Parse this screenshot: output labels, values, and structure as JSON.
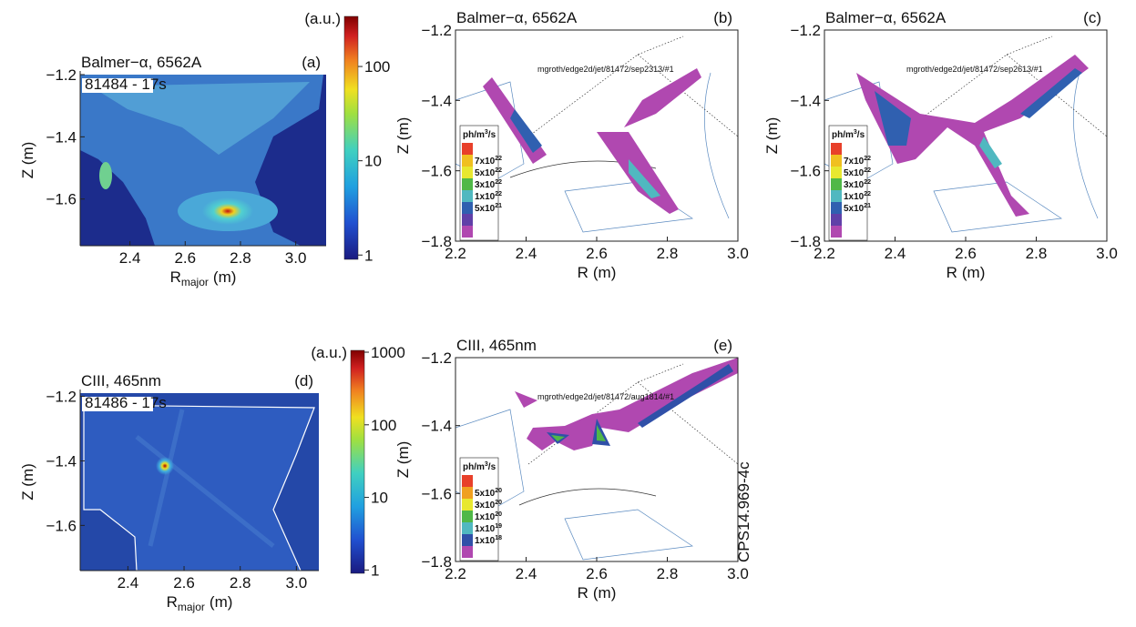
{
  "panels": [
    {
      "label": "(a)",
      "title": "Balmer−α, 6562A",
      "shot": "81484 - 17s",
      "xlabel": {
        "main": "R",
        "sub": "major",
        "unit": "(m)"
      },
      "ylabel": "Z (m)",
      "xlim": [
        2.22,
        3.11
      ],
      "ylim": [
        -1.75,
        -1.2
      ],
      "xticks": [
        2.4,
        2.6,
        2.8,
        {
          "value": 3,
          "label": "3.0"
        }
      ],
      "yticks": [
        {
          "value": -1.2,
          "label": "−1.2"
        },
        {
          "value": -1.4,
          "label": "−1.4"
        },
        {
          "value": -1.6,
          "label": "−1.6"
        }
      ],
      "colorbar": {
        "label": "(a.u.)",
        "scale": "log",
        "lim": [
          0.9,
          340
        ],
        "ticks": [
          1,
          10,
          100
        ]
      }
    },
    {
      "label": "(b)",
      "title": "Balmer−α, 6562A",
      "path": "mgroth/edge2d/jet/81472/sep2313/#1",
      "xlabel": {
        "main": "R",
        "unit": "(m)"
      },
      "ylabel": "Z (m)",
      "xlim": [
        2.2,
        3.0
      ],
      "ylim": [
        -1.8,
        -1.2
      ],
      "xticks": [
        2.2,
        2.4,
        2.6,
        2.8,
        {
          "value": 3,
          "label": "3.0"
        }
      ],
      "yticks": [
        {
          "value": -1.2,
          "label": "−1.2"
        },
        {
          "value": -1.4,
          "label": "−1.4"
        },
        {
          "value": -1.6,
          "label": "−1.6"
        },
        {
          "value": -1.8,
          "label": "−1.8"
        }
      ],
      "legend": {
        "unit": {
          "base": "ph/m",
          "sup": "3",
          "rest": "/s"
        },
        "colors": [
          "#e8402a",
          "#f0c020",
          "#e8e830",
          "#50b848",
          "#50b8c0",
          "#3060b0",
          "#6040a8",
          "#b048b0"
        ],
        "labels": [
          {
            "base": "7x10",
            "exp": "22"
          },
          {
            "base": "5x10",
            "exp": "22"
          },
          {
            "base": "3x10",
            "exp": "22"
          },
          {
            "base": "1x10",
            "exp": "22"
          },
          {
            "base": "5x10",
            "exp": "21"
          }
        ]
      }
    },
    {
      "label": "(c)",
      "title": "Balmer−α, 6562A",
      "path": "mgroth/edge2d/jet/81472/sep2613/#1",
      "xlabel": {
        "main": "R",
        "unit": "(m)"
      },
      "ylabel": "Z (m)",
      "xlim": [
        2.2,
        3.0
      ],
      "ylim": [
        -1.8,
        -1.2
      ],
      "xticks": [
        2.2,
        2.4,
        2.6,
        2.8,
        {
          "value": 3,
          "label": "3.0"
        }
      ],
      "yticks": [
        {
          "value": -1.2,
          "label": "−1.2"
        },
        {
          "value": -1.4,
          "label": "−1.4"
        },
        {
          "value": -1.6,
          "label": "−1.6"
        },
        {
          "value": -1.8,
          "label": "−1.8"
        }
      ],
      "legend": {
        "unit": {
          "base": "ph/m",
          "sup": "3",
          "rest": "/s"
        },
        "colors": [
          "#e8402a",
          "#f0c020",
          "#e8e830",
          "#50b848",
          "#50b8c0",
          "#3060b0",
          "#6040a8",
          "#b048b0"
        ],
        "labels": [
          {
            "base": "7x10",
            "exp": "22"
          },
          {
            "base": "5x10",
            "exp": "22"
          },
          {
            "base": "3x10",
            "exp": "22"
          },
          {
            "base": "1x10",
            "exp": "22"
          },
          {
            "base": "5x10",
            "exp": "21"
          }
        ]
      }
    },
    {
      "label": "(d)",
      "title": "CIII, 465nm",
      "shot": "81486 - 17s",
      "xlabel": {
        "main": "R",
        "sub": "major",
        "unit": "(m)"
      },
      "ylabel": "Z (m)",
      "xlim": [
        2.23,
        3.08
      ],
      "ylim": [
        -1.74,
        -1.19
      ],
      "xticks": [
        2.4,
        2.6,
        2.8,
        {
          "value": 3,
          "label": "3.0"
        }
      ],
      "yticks": [
        {
          "value": -1.2,
          "label": "−1.2"
        },
        {
          "value": -1.4,
          "label": "−1.4"
        },
        {
          "value": -1.6,
          "label": "−1.6"
        }
      ],
      "colorbar": {
        "label": "(a.u.)",
        "scale": "log",
        "lim": [
          0.9,
          1060
        ],
        "ticks": [
          1,
          10,
          100,
          1000
        ]
      }
    },
    {
      "label": "(e)",
      "title": "CIII, 465nm",
      "path": "mgroth/edge2d/jet/81472/aug1814/#1",
      "xlabel": {
        "main": "R",
        "unit": "(m)"
      },
      "ylabel": "Z (m)",
      "xlim": [
        2.2,
        3.0
      ],
      "ylim": [
        -1.8,
        -1.2
      ],
      "xticks": [
        2.2,
        2.4,
        2.6,
        2.8,
        {
          "value": 3,
          "label": "3.0"
        }
      ],
      "yticks": [
        {
          "value": -1.2,
          "label": "−1.2"
        },
        {
          "value": -1.4,
          "label": "−1.4"
        },
        {
          "value": -1.6,
          "label": "−1.6"
        },
        {
          "value": -1.8,
          "label": "−1.8"
        }
      ],
      "legend": {
        "unit": {
          "base": "ph/m",
          "sup": "3",
          "rest": "/s"
        },
        "colors": [
          "#e8402a",
          "#f0a020",
          "#e8e830",
          "#50b848",
          "#50b8c0",
          "#3050a8",
          "#b048b0"
        ],
        "labels": [
          {
            "base": "5x10",
            "exp": "20"
          },
          {
            "base": "3x10",
            "exp": "20"
          },
          {
            "base": "1x10",
            "exp": "20"
          },
          {
            "base": "1x10",
            "exp": "19"
          },
          {
            "base": "1x10",
            "exp": "18"
          }
        ]
      }
    }
  ],
  "footer": "CPS14.969-4c"
}
